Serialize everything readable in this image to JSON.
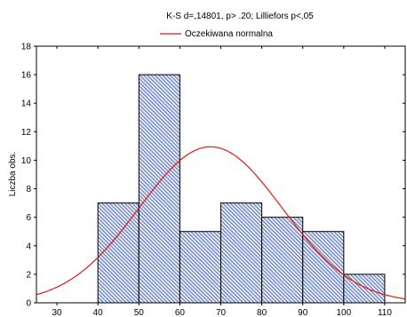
{
  "chart_data": {
    "type": "bar",
    "title": "K-S d=,14801, p> .20; Lilliefors p<,05",
    "xlabel": "",
    "ylabel": "Liczba obs.",
    "legend": {
      "position": "top-center",
      "label": "Oczekiwana normalna"
    },
    "xlim": [
      25,
      115
    ],
    "ylim": [
      0,
      18
    ],
    "x_ticks": [
      30,
      40,
      50,
      60,
      70,
      80,
      90,
      100,
      110
    ],
    "y_ticks": [
      0,
      2,
      4,
      6,
      8,
      10,
      12,
      14,
      16,
      18
    ],
    "bins": [
      {
        "from": 40,
        "to": 50,
        "count": 7
      },
      {
        "from": 50,
        "to": 60,
        "count": 16
      },
      {
        "from": 60,
        "to": 70,
        "count": 5
      },
      {
        "from": 70,
        "to": 80,
        "count": 7
      },
      {
        "from": 80,
        "to": 90,
        "count": 6
      },
      {
        "from": 90,
        "to": 100,
        "count": 5
      },
      {
        "from": 100,
        "to": 110,
        "count": 2
      }
    ],
    "normal_curve": {
      "name": "Oczekiwana normalna",
      "mean": 67.5,
      "sd": 17.5,
      "n": 48,
      "bin_width": 10,
      "color": "#e01818"
    },
    "bar_color": "#1f3a8a",
    "grid": false
  }
}
